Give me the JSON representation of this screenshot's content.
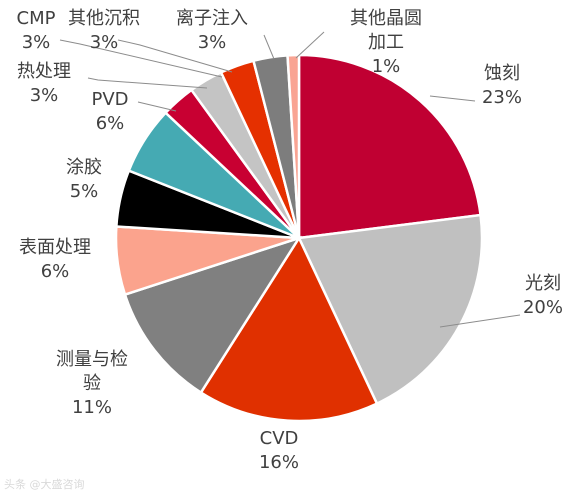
{
  "chart_data": {
    "type": "pie",
    "title": "",
    "start_angle_deg": 0,
    "direction": "clockwise",
    "slices": [
      {
        "label": [
          "蚀刻"
        ],
        "value": 23,
        "value_label": "23%",
        "color": "#c00032"
      },
      {
        "label": [
          "光刻"
        ],
        "value": 20,
        "value_label": "20%",
        "color": "#c0c0c0"
      },
      {
        "label": [
          "CVD"
        ],
        "value": 16,
        "value_label": "16%",
        "color": "#e03000"
      },
      {
        "label": [
          "测量与检",
          "验"
        ],
        "value": 11,
        "value_label": "11%",
        "color": "#808080"
      },
      {
        "label": [
          "表面处理"
        ],
        "value": 6,
        "value_label": "6%",
        "color": "#fba38d"
      },
      {
        "label": [
          "涂胶"
        ],
        "value": 5,
        "value_label": "5%",
        "color": "#000000"
      },
      {
        "label": [
          "PVD"
        ],
        "value": 6,
        "value_label": "6%",
        "color": "#45aab3"
      },
      {
        "label": [
          "热处理"
        ],
        "value": 3,
        "value_label": "3%",
        "color": "#c80032"
      },
      {
        "label": [
          "CMP"
        ],
        "value": 3,
        "value_label": "3%",
        "color": "#c4c4c4"
      },
      {
        "label": [
          "其他沉积"
        ],
        "value": 3,
        "value_label": "3%",
        "color": "#e53000"
      },
      {
        "label": [
          "离子注入"
        ],
        "value": 3,
        "value_label": "3%",
        "color": "#7d7d7d"
      },
      {
        "label": [
          "其他晶圆",
          "加工"
        ],
        "value": 1,
        "value_label": "1%",
        "color": "#f9a493"
      }
    ]
  },
  "watermark": "头条 @大盛咨询"
}
